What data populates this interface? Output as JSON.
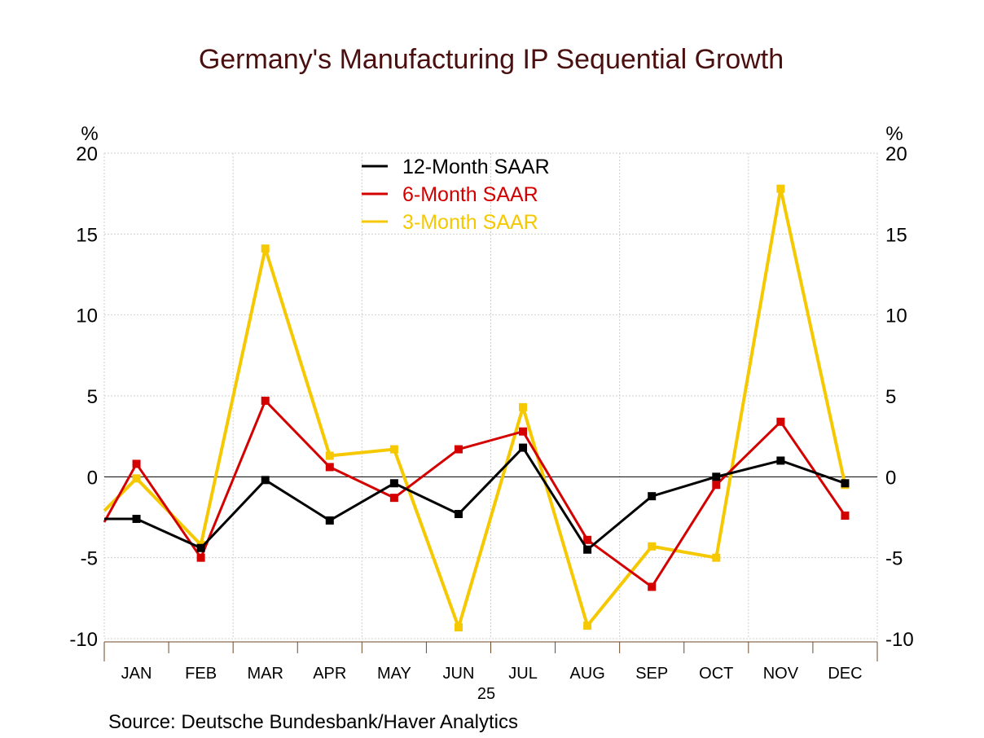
{
  "chart_data": {
    "type": "line",
    "title": "Germany's Manufacturing IP Sequential Growth",
    "ylabel_left": "%",
    "ylabel_right": "%",
    "ylim": [
      -10,
      20
    ],
    "yticks": [
      20,
      15,
      10,
      5,
      0,
      -5,
      -10
    ],
    "categories": [
      "JAN",
      "FEB",
      "MAR",
      "APR",
      "MAY",
      "JUN",
      "JUL",
      "AUG",
      "SEP",
      "OCT",
      "NOV",
      "DEC"
    ],
    "year_label": "25",
    "grid": true,
    "legend_position": "top-center",
    "source": "Source:  Deutsche Bundesbank/Haver Analytics",
    "series": [
      {
        "name": "12-Month SAAR",
        "color": "#000000",
        "start": -2.6,
        "values": [
          -2.6,
          -4.4,
          -0.2,
          -2.7,
          -0.4,
          -2.3,
          1.8,
          -4.5,
          -1.2,
          0.0,
          1.0,
          -0.4
        ]
      },
      {
        "name": "6-Month SAAR",
        "color": "#d40000",
        "start": -2.8,
        "values": [
          0.8,
          -5.0,
          4.7,
          0.6,
          -1.3,
          1.7,
          2.8,
          -3.9,
          -6.8,
          -0.5,
          3.4,
          -2.4
        ]
      },
      {
        "name": "3-Month SAAR",
        "color": "#f5c800",
        "start": -2.1,
        "values": [
          -0.1,
          -4.2,
          14.1,
          1.3,
          1.7,
          -9.3,
          4.3,
          -9.2,
          -4.3,
          -5.0,
          17.8,
          -0.5
        ]
      }
    ]
  }
}
